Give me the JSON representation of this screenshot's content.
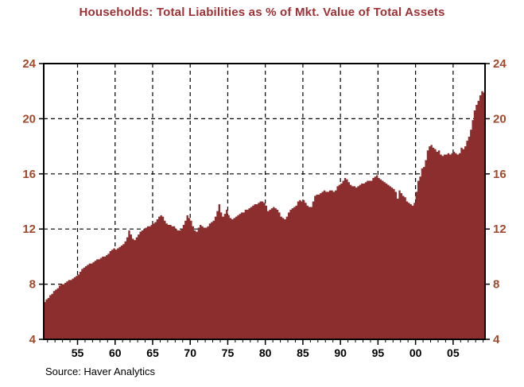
{
  "page": {
    "title": "Households: Total Liabilities as % of Mkt. Value of Total Assets",
    "source_note": "Source: Haver Analytics"
  },
  "colors": {
    "background": "#ffffff",
    "series_fill": "#8d2e2e",
    "title_text": "#9d3134",
    "y_tick_text": "#a0492c",
    "x_tick_text": "#000000",
    "frame": "#000000",
    "grid": "#000000"
  },
  "chart_data": {
    "type": "area",
    "title": "Households: Total Liabilities as % of Mkt. Value of Total Assets",
    "series_name": "Household total liabilities as % of market value of total assets",
    "xlabel": "",
    "ylabel": "",
    "legend": "none",
    "grid_style": "dashed",
    "grid_behind_series": true,
    "ylim": [
      4,
      24
    ],
    "yticks_left": [
      "4",
      "8",
      "12",
      "16",
      "20",
      "24"
    ],
    "yticks_right": [
      "4",
      "8",
      "12",
      "16",
      "20",
      "24"
    ],
    "ytick_values": [
      4,
      8,
      12,
      16,
      20,
      24
    ],
    "y_grid_values": [
      8,
      12,
      16,
      20
    ],
    "x_domain": [
      1950.5,
      2009.25
    ],
    "x_major_ticks": [
      {
        "t": 1955,
        "label": "55"
      },
      {
        "t": 1960,
        "label": "60"
      },
      {
        "t": 1965,
        "label": "65"
      },
      {
        "t": 1970,
        "label": "70"
      },
      {
        "t": 1975,
        "label": "75"
      },
      {
        "t": 1980,
        "label": "80"
      },
      {
        "t": 1985,
        "label": "85"
      },
      {
        "t": 1990,
        "label": "90"
      },
      {
        "t": 1995,
        "label": "95"
      },
      {
        "t": 2000,
        "label": "00"
      },
      {
        "t": 2005,
        "label": "05"
      }
    ],
    "x_minor_tick_start": 1951,
    "x_minor_tick_end": 2009,
    "x_minor_tick_step": 1,
    "frequency": "quarterly",
    "x_start": 1950.5,
    "x_step": 0.25,
    "values": [
      6.7,
      6.9,
      7.0,
      7.2,
      7.3,
      7.5,
      7.6,
      7.7,
      7.9,
      8.0,
      8.0,
      8.1,
      8.2,
      8.3,
      8.3,
      8.4,
      8.5,
      8.6,
      8.7,
      8.9,
      9.1,
      9.2,
      9.3,
      9.4,
      9.5,
      9.5,
      9.6,
      9.7,
      9.8,
      9.8,
      9.9,
      10.0,
      10.0,
      10.1,
      10.2,
      10.4,
      10.5,
      10.6,
      10.5,
      10.6,
      10.7,
      10.8,
      10.9,
      11.1,
      11.4,
      11.9,
      11.6,
      11.3,
      11.2,
      11.4,
      11.6,
      11.8,
      11.9,
      12.0,
      12.1,
      12.2,
      12.2,
      12.3,
      12.4,
      12.5,
      12.7,
      12.9,
      13.0,
      12.9,
      12.6,
      12.4,
      12.3,
      12.3,
      12.2,
      12.2,
      12.0,
      11.9,
      11.9,
      12.0,
      12.3,
      12.6,
      13.0,
      12.8,
      12.6,
      12.2,
      11.9,
      11.8,
      12.1,
      12.3,
      12.2,
      12.1,
      12.1,
      12.2,
      12.4,
      12.5,
      12.6,
      12.9,
      13.3,
      13.8,
      13.2,
      12.9,
      13.1,
      13.4,
      13.0,
      12.8,
      12.7,
      12.8,
      12.9,
      13.0,
      13.1,
      13.2,
      13.2,
      13.4,
      13.4,
      13.5,
      13.6,
      13.7,
      13.8,
      13.8,
      13.9,
      14.0,
      14.0,
      13.9,
      13.7,
      13.3,
      13.4,
      13.5,
      13.6,
      13.5,
      13.4,
      13.2,
      12.9,
      12.8,
      12.7,
      12.9,
      13.2,
      13.4,
      13.5,
      13.6,
      13.7,
      14.0,
      14.1,
      14.0,
      14.1,
      13.9,
      13.7,
      13.6,
      13.6,
      14.0,
      14.4,
      14.5,
      14.5,
      14.6,
      14.7,
      14.8,
      14.7,
      14.7,
      14.8,
      14.8,
      14.7,
      14.8,
      15.1,
      15.2,
      15.3,
      15.5,
      15.7,
      15.6,
      15.4,
      15.2,
      15.1,
      15.1,
      15.0,
      15.1,
      15.2,
      15.3,
      15.3,
      15.4,
      15.5,
      15.5,
      15.5,
      15.7,
      15.8,
      15.9,
      15.7,
      15.6,
      15.5,
      15.4,
      15.3,
      15.2,
      15.1,
      15.0,
      14.9,
      14.7,
      14.2,
      14.8,
      14.6,
      14.4,
      14.3,
      14.0,
      13.9,
      13.8,
      13.7,
      13.9,
      14.7,
      15.5,
      15.8,
      16.4,
      16.5,
      17.0,
      17.7,
      18.0,
      18.1,
      17.9,
      17.8,
      17.6,
      17.7,
      17.4,
      17.3,
      17.4,
      17.4,
      17.5,
      17.4,
      17.5,
      17.6,
      17.5,
      17.4,
      17.5,
      17.9,
      17.8,
      18.0,
      18.4,
      18.7,
      19.2,
      19.9,
      20.6,
      21.0,
      21.3,
      21.7,
      22.0,
      21.9
    ]
  }
}
